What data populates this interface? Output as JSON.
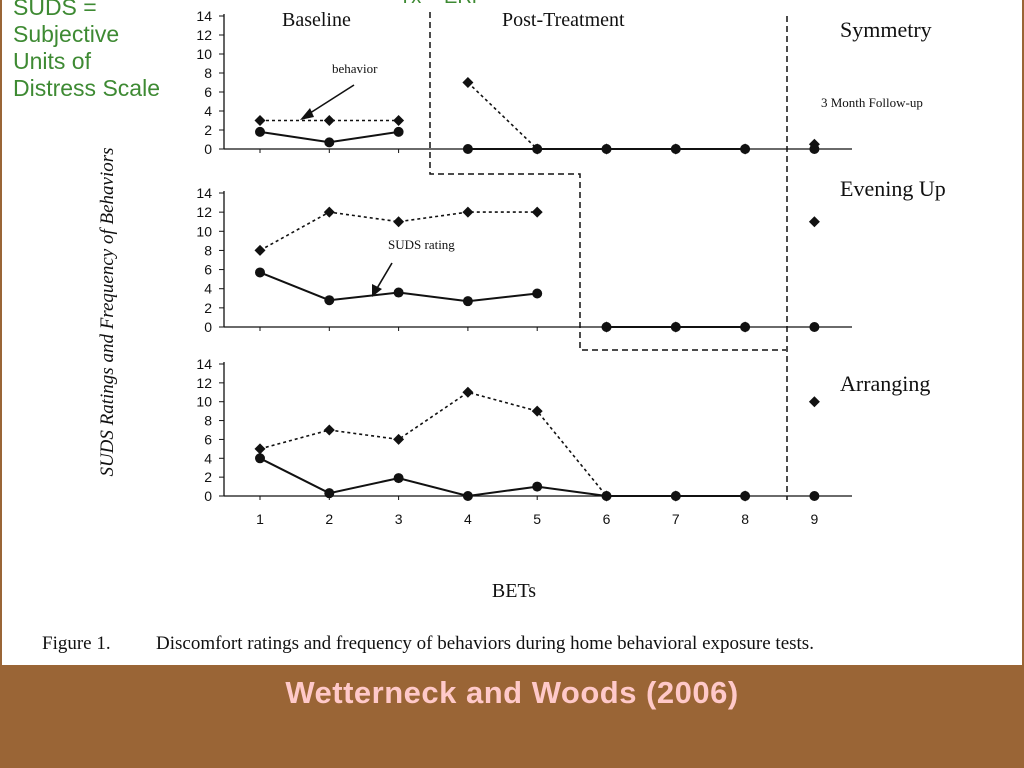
{
  "notes": {
    "suds_lines": [
      "SUDS =",
      "Subjective",
      "Units of",
      "Distress Scale"
    ],
    "tx": "Tx = ERP"
  },
  "footer": {
    "title": "Wetterneck and Woods (2006)"
  },
  "chart_data": {
    "type": "line",
    "ylabel": "SUDS Ratings and Frequency of Behaviors",
    "xlabel": "BETs",
    "caption_label": "Figure 1.",
    "caption": "Discomfort ratings and frequency of behaviors during home behavioral exposure tests.",
    "x": [
      1,
      2,
      3,
      4,
      5,
      6,
      7,
      8,
      9
    ],
    "ylim": [
      0,
      14
    ],
    "yticks": [
      0,
      2,
      4,
      6,
      8,
      10,
      12,
      14
    ],
    "phase_labels": {
      "baseline": "Baseline",
      "post": "Post-Treatment",
      "followup": "3 Month Follow-up"
    },
    "annotations": {
      "behavior": "behavior",
      "suds": "SUDS rating"
    },
    "panels": [
      {
        "name": "Symmetry",
        "series": [
          {
            "key": "behavior",
            "segments": [
              [
                [
                  1,
                  3
                ],
                [
                  2,
                  3
                ],
                [
                  3,
                  3
                ]
              ],
              [
                [
                  4,
                  7
                ],
                [
                  5,
                  0
                ],
                [
                  6,
                  0
                ],
                [
                  7,
                  0
                ],
                [
                  8,
                  0
                ]
              ]
            ],
            "points": [
              [
                9,
                0.5
              ]
            ]
          },
          {
            "key": "suds",
            "segments": [
              [
                [
                  1,
                  1.8
                ],
                [
                  2,
                  0.7
                ],
                [
                  3,
                  1.8
                ]
              ],
              [
                [
                  4,
                  0
                ],
                [
                  5,
                  0
                ],
                [
                  6,
                  0
                ],
                [
                  7,
                  0
                ],
                [
                  8,
                  0
                ]
              ]
            ],
            "points": [
              [
                9,
                0
              ]
            ]
          }
        ]
      },
      {
        "name": "Evening Up",
        "series": [
          {
            "key": "behavior",
            "segments": [
              [
                [
                  1,
                  8
                ],
                [
                  2,
                  12
                ],
                [
                  3,
                  11
                ],
                [
                  4,
                  12
                ],
                [
                  5,
                  12
                ]
              ],
              [
                [
                  6,
                  0
                ],
                [
                  7,
                  0
                ],
                [
                  8,
                  0
                ]
              ]
            ],
            "points": [
              [
                9,
                11
              ]
            ]
          },
          {
            "key": "suds",
            "segments": [
              [
                [
                  1,
                  5.7
                ],
                [
                  2,
                  2.8
                ],
                [
                  3,
                  3.6
                ],
                [
                  4,
                  2.7
                ],
                [
                  5,
                  3.5
                ]
              ],
              [
                [
                  6,
                  0
                ],
                [
                  7,
                  0
                ],
                [
                  8,
                  0
                ]
              ]
            ],
            "points": [
              [
                9,
                0
              ]
            ]
          }
        ]
      },
      {
        "name": "Arranging",
        "series": [
          {
            "key": "behavior",
            "segments": [
              [
                [
                  1,
                  5
                ],
                [
                  2,
                  7
                ],
                [
                  3,
                  6
                ],
                [
                  4,
                  11
                ],
                [
                  5,
                  9
                ],
                [
                  6,
                  0
                ],
                [
                  7,
                  0
                ],
                [
                  8,
                  0
                ]
              ]
            ],
            "points": [
              [
                9,
                10
              ]
            ]
          },
          {
            "key": "suds",
            "segments": [
              [
                [
                  1,
                  4
                ],
                [
                  2,
                  0.3
                ],
                [
                  3,
                  1.9
                ],
                [
                  4,
                  0
                ],
                [
                  5,
                  1
                ],
                [
                  6,
                  0
                ],
                [
                  7,
                  0
                ],
                [
                  8,
                  0
                ]
              ]
            ],
            "points": [
              [
                9,
                0
              ]
            ]
          }
        ]
      }
    ]
  }
}
